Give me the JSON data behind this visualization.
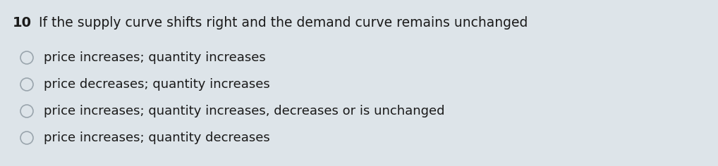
{
  "background_color": "#dde4e9",
  "question_number": "10",
  "question_text": "If the supply curve shifts right and the demand curve remains unchanged",
  "options": [
    "price increases; quantity increases",
    "price decreases; quantity increases",
    "price increases; quantity increases, decreases or is unchanged",
    "price increases; quantity decreases"
  ],
  "question_number_fontsize": 14,
  "question_text_fontsize": 13.5,
  "option_fontsize": 13,
  "text_color": "#1a1a1a",
  "radio_outline_color": "#9aa5ad",
  "radio_fill_color": "#dde4e9",
  "font_family": "DejaVu Sans"
}
